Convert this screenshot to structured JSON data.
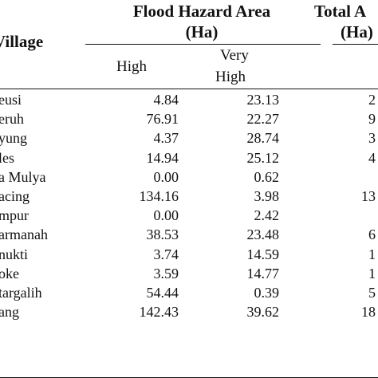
{
  "header": {
    "village_label": "Village",
    "flood_title_1": "Flood Hazard Area",
    "flood_title_2": "(Ha)",
    "total_title_1": "Total A",
    "total_title_2": "(Ha)",
    "col_high": "High",
    "col_very_1": "Very",
    "col_very_2": "High"
  },
  "rows": [
    {
      "village": "eusi",
      "high": "4.84",
      "very_high": "23.13",
      "total": "2"
    },
    {
      "village": "eruh",
      "high": "76.91",
      "very_high": "22.27",
      "total": "9"
    },
    {
      "village": "yung",
      "high": "4.37",
      "very_high": "28.74",
      "total": "3"
    },
    {
      "village": "les",
      "high": "14.94",
      "very_high": "25.12",
      "total": "4"
    },
    {
      "village": "a Mulya",
      "high": "0.00",
      "very_high": "0.62",
      "total": ""
    },
    {
      "village": "acing",
      "high": "134.16",
      "very_high": "3.98",
      "total": "13"
    },
    {
      "village": "mpur",
      "high": "0.00",
      "very_high": "2.42",
      "total": ""
    },
    {
      "village": "armanah",
      "high": "38.53",
      "very_high": "23.48",
      "total": "6"
    },
    {
      "village": "nukti",
      "high": "3.74",
      "very_high": "14.59",
      "total": "1"
    },
    {
      "village": "oke",
      "high": "3.59",
      "very_high": "14.77",
      "total": "1"
    },
    {
      "village": "targalih",
      "high": "54.44",
      "very_high": "0.39",
      "total": "5"
    },
    {
      "village": "ang",
      "high": "142.43",
      "very_high": "39.62",
      "total": "18"
    }
  ]
}
